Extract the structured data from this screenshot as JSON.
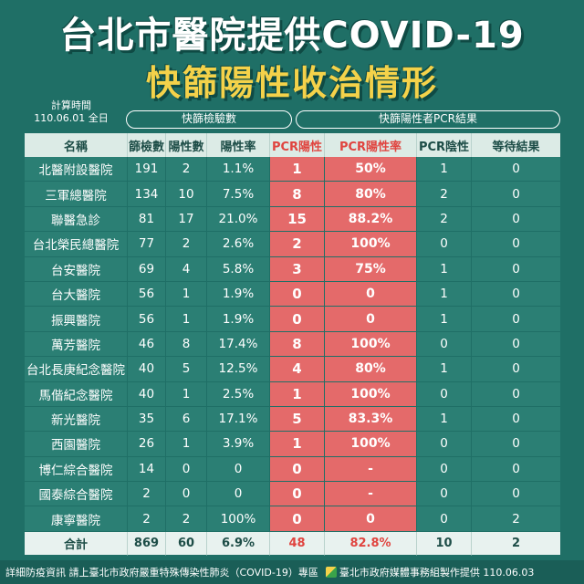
{
  "title_line1": "台北市醫院提供COVID-19",
  "title_line2": "快篩陽性收治情形",
  "calc_time_label": "計算時間",
  "calc_time_value": "110.06.01 全日",
  "group_rapid": "快篩檢驗數",
  "group_pcr": "快篩陽性者PCR結果",
  "headers": {
    "name": "名稱",
    "screened": "篩檢數",
    "positive": "陽性數",
    "positive_rate": "陽性率",
    "pcr_positive": "PCR陽性",
    "pcr_positive_rate": "PCR陽性率",
    "pcr_negative": "PCR陰性",
    "pending": "等待結果"
  },
  "rows": [
    {
      "name": "北醫附設醫院",
      "screened": "191",
      "positive": "2",
      "rate": "1.1%",
      "pcr_pos": "1",
      "pcr_rate": "50%",
      "pcr_neg": "1",
      "pending": "0"
    },
    {
      "name": "三軍總醫院",
      "screened": "134",
      "positive": "10",
      "rate": "7.5%",
      "pcr_pos": "8",
      "pcr_rate": "80%",
      "pcr_neg": "2",
      "pending": "0"
    },
    {
      "name": "聯醫急診",
      "screened": "81",
      "positive": "17",
      "rate": "21.0%",
      "pcr_pos": "15",
      "pcr_rate": "88.2%",
      "pcr_neg": "2",
      "pending": "0"
    },
    {
      "name": "台北榮民總醫院",
      "screened": "77",
      "positive": "2",
      "rate": "2.6%",
      "pcr_pos": "2",
      "pcr_rate": "100%",
      "pcr_neg": "0",
      "pending": "0"
    },
    {
      "name": "台安醫院",
      "screened": "69",
      "positive": "4",
      "rate": "5.8%",
      "pcr_pos": "3",
      "pcr_rate": "75%",
      "pcr_neg": "1",
      "pending": "0"
    },
    {
      "name": "台大醫院",
      "screened": "56",
      "positive": "1",
      "rate": "1.9%",
      "pcr_pos": "0",
      "pcr_rate": "0",
      "pcr_neg": "1",
      "pending": "0"
    },
    {
      "name": "振興醫院",
      "screened": "56",
      "positive": "1",
      "rate": "1.9%",
      "pcr_pos": "0",
      "pcr_rate": "0",
      "pcr_neg": "1",
      "pending": "0"
    },
    {
      "name": "萬芳醫院",
      "screened": "46",
      "positive": "8",
      "rate": "17.4%",
      "pcr_pos": "8",
      "pcr_rate": "100%",
      "pcr_neg": "0",
      "pending": "0"
    },
    {
      "name": "台北長庚紀念醫院",
      "screened": "40",
      "positive": "5",
      "rate": "12.5%",
      "pcr_pos": "4",
      "pcr_rate": "80%",
      "pcr_neg": "1",
      "pending": "0"
    },
    {
      "name": "馬偕紀念醫院",
      "screened": "40",
      "positive": "1",
      "rate": "2.5%",
      "pcr_pos": "1",
      "pcr_rate": "100%",
      "pcr_neg": "0",
      "pending": "0"
    },
    {
      "name": "新光醫院",
      "screened": "35",
      "positive": "6",
      "rate": "17.1%",
      "pcr_pos": "5",
      "pcr_rate": "83.3%",
      "pcr_neg": "1",
      "pending": "0"
    },
    {
      "name": "西園醫院",
      "screened": "26",
      "positive": "1",
      "rate": "3.9%",
      "pcr_pos": "1",
      "pcr_rate": "100%",
      "pcr_neg": "0",
      "pending": "0"
    },
    {
      "name": "博仁綜合醫院",
      "screened": "14",
      "positive": "0",
      "rate": "0",
      "pcr_pos": "0",
      "pcr_rate": "-",
      "pcr_neg": "0",
      "pending": "0"
    },
    {
      "name": "國泰綜合醫院",
      "screened": "2",
      "positive": "0",
      "rate": "0",
      "pcr_pos": "0",
      "pcr_rate": "-",
      "pcr_neg": "0",
      "pending": "0"
    },
    {
      "name": "康寧醫院",
      "screened": "2",
      "positive": "2",
      "rate": "100%",
      "pcr_pos": "0",
      "pcr_rate": "0",
      "pcr_neg": "0",
      "pending": "2"
    }
  ],
  "total": {
    "name": "合計",
    "screened": "869",
    "positive": "60",
    "rate": "6.9%",
    "pcr_pos": "48",
    "pcr_rate": "82.8%",
    "pcr_neg": "10",
    "pending": "2"
  },
  "footer": {
    "left": "詳細防疫資訊 請上臺北市政府嚴重特殊傳染性肺炎（COVID-19）專區",
    "right": "臺北市政府媒體事務組製作提供 110.06.03"
  },
  "colors": {
    "background": "#1f6f66",
    "row": "#2b7f74",
    "pcr_highlight": "#e46a6a",
    "title_accent": "#f4d24a"
  }
}
